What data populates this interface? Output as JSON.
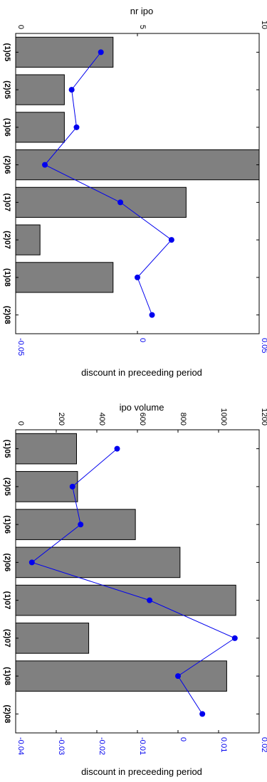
{
  "chart_data": [
    {
      "type": "bar",
      "categories": [
        "(1)05",
        "(2)05",
        "(1)06",
        "(2)06",
        "(1)07",
        "(2)07",
        "(1)08",
        "(2)08"
      ],
      "bar_label": "nr ipo",
      "bar_values": [
        4,
        2,
        2,
        10,
        7,
        1,
        4,
        0
      ],
      "bar_lim": [
        0,
        10
      ],
      "bar_ticks": [
        "0",
        "5",
        "10"
      ],
      "line_label": "discount in preceeding period",
      "line_values": [
        -0.015,
        -0.027,
        -0.025,
        -0.038,
        -0.007,
        0.014,
        0.0,
        0.006
      ],
      "line_lim": [
        -0.05,
        0.05
      ],
      "line_ticks": [
        "-0.05",
        "0",
        "0.05"
      ],
      "bar_color": "#808080",
      "line_color": "#0000ee"
    },
    {
      "type": "bar",
      "categories": [
        "(1)05",
        "(2)05",
        "(1)06",
        "(2)06",
        "(1)07",
        "(2)07",
        "(1)08",
        "(2)08"
      ],
      "bar_label": "ipo volume",
      "bar_values": [
        300,
        305,
        590,
        810,
        1085,
        360,
        1040,
        0
      ],
      "bar_lim": [
        0,
        1200
      ],
      "bar_ticks": [
        "0",
        "200",
        "400",
        "600",
        "800",
        "1000",
        "1200"
      ],
      "line_label": "discount in preceeding period",
      "line_values": [
        -0.015,
        -0.026,
        -0.024,
        -0.036,
        -0.007,
        0.014,
        0.0,
        0.006
      ],
      "line_lim": [
        -0.04,
        0.02
      ],
      "line_ticks": [
        "-0.04",
        "-0.03",
        "-0.02",
        "-0.01",
        "0",
        "0.01",
        "0.02"
      ],
      "bar_color": "#808080",
      "line_color": "#0000ee"
    }
  ]
}
